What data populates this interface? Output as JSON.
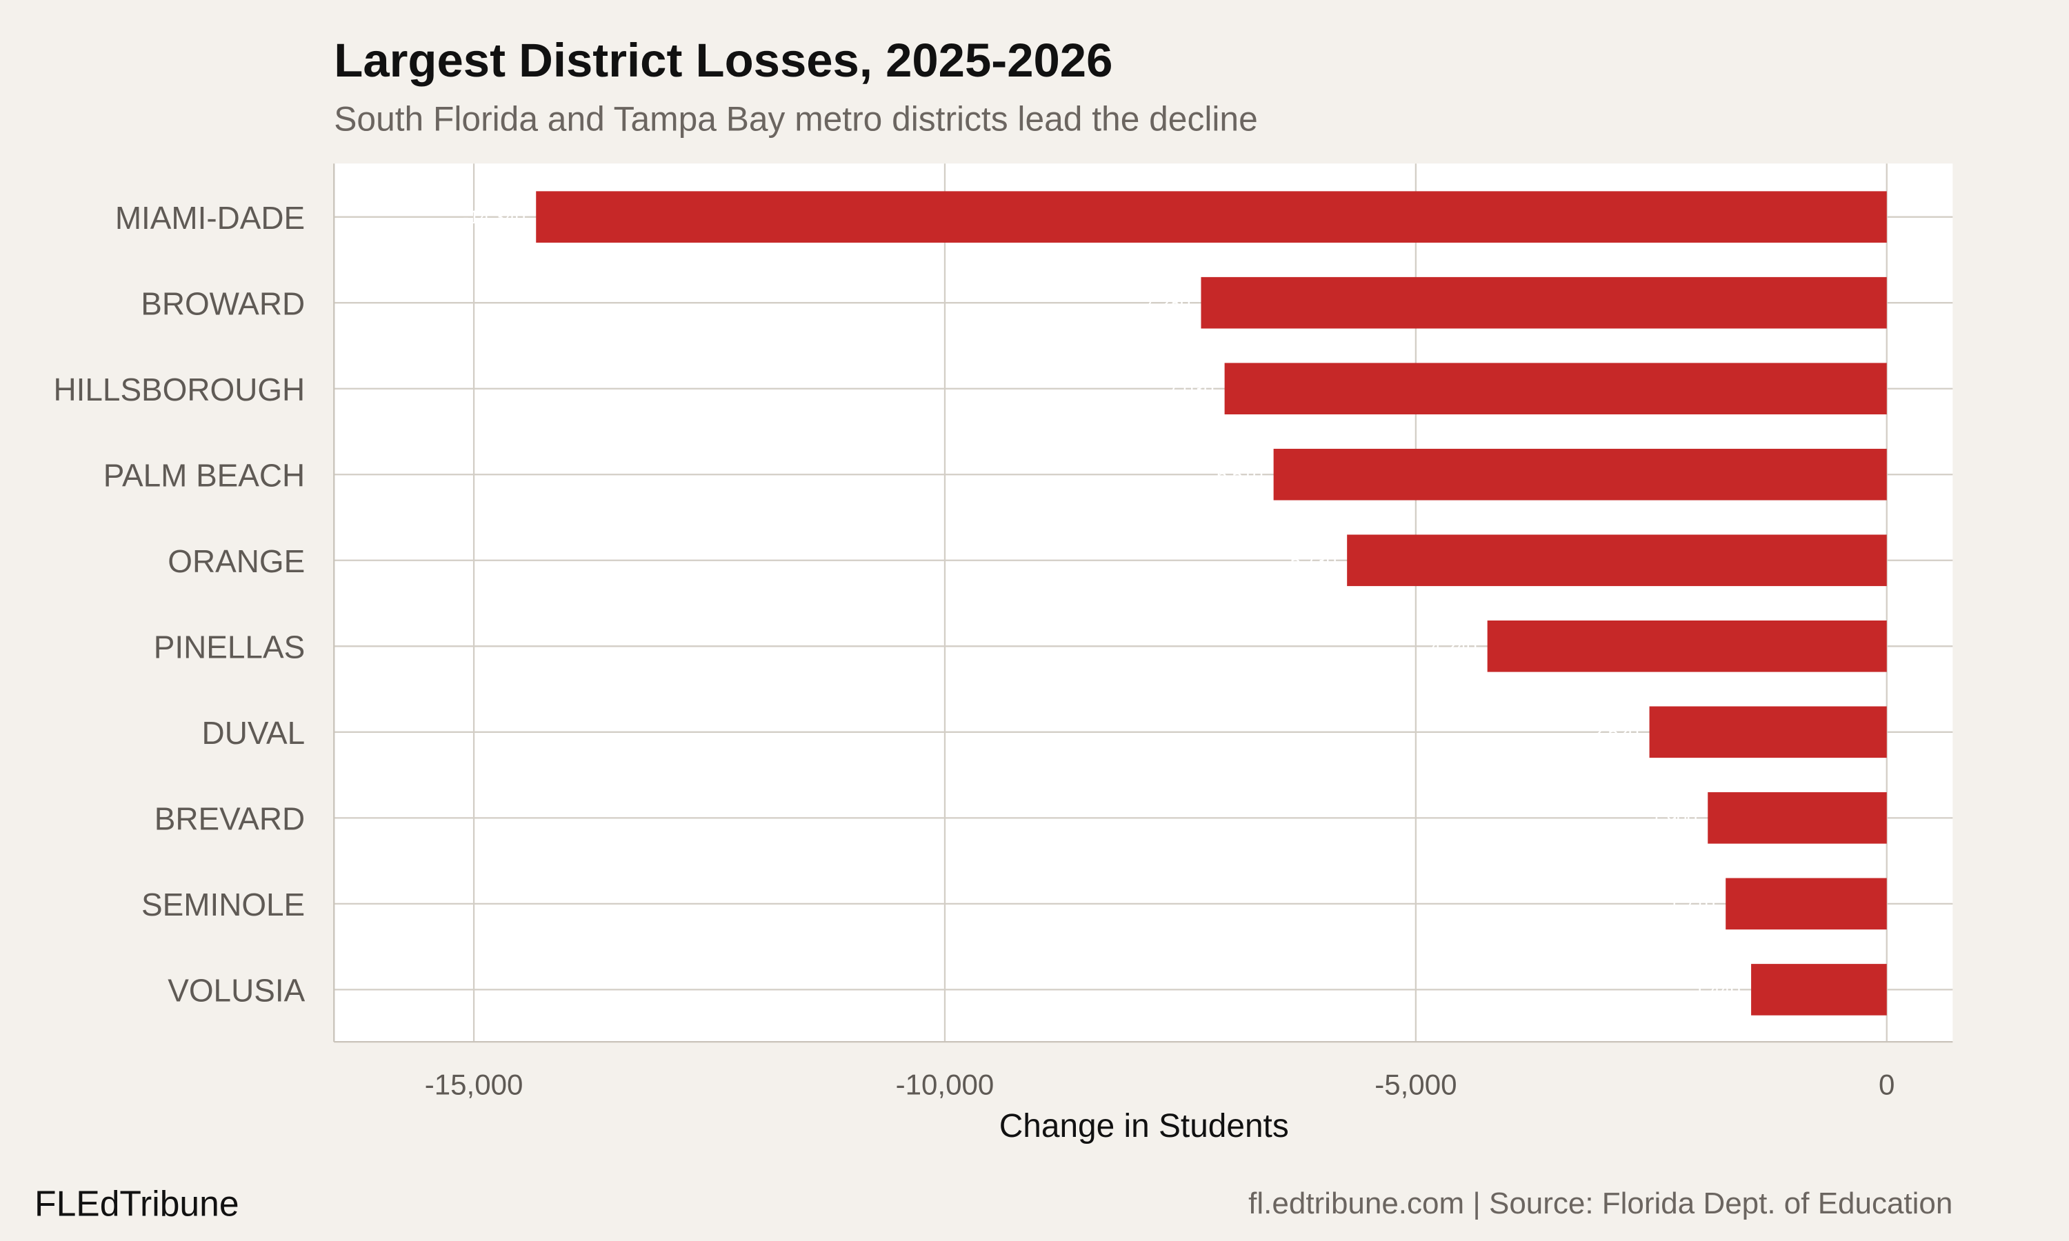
{
  "chart_data": {
    "type": "bar",
    "orientation": "horizontal",
    "title": "Largest District Losses, 2025-2026",
    "subtitle": "South Florida and Tampa Bay metro districts lead the decline",
    "xlabel": "Change in Students",
    "ylabel": "",
    "categories": [
      "MIAMI-DADE",
      "BROWARD",
      "HILLSBOROUGH",
      "PALM BEACH",
      "ORANGE",
      "PINELLAS",
      "DUVAL",
      "BREVARD",
      "SEMINOLE",
      "VOLUSIA"
    ],
    "values": [
      -14340,
      -7280,
      -7030,
      -6510,
      -5730,
      -4240,
      -2520,
      -1900,
      -1710,
      -1440
    ],
    "data_labels": [
      "-14,340",
      "-7,280",
      "-7,030",
      "-6,510",
      "-5,730",
      "-4,240",
      "-2,520",
      "-1,900",
      "-1,710",
      "-1,440"
    ],
    "xlim": [
      -16485,
      700
    ],
    "x_ticks": [
      -15000,
      -10000,
      -5000,
      0
    ],
    "x_tick_labels": [
      "-15,000",
      "-10,000",
      "-5,000",
      "0"
    ],
    "grid": true,
    "bar_color": "#c62828",
    "background": "#f4f1ec",
    "panel_background": "#ffffff"
  },
  "footer": {
    "brand": "FLEdTribune",
    "source": "fl.edtribune.com | Source: Florida Dept. of Education"
  }
}
